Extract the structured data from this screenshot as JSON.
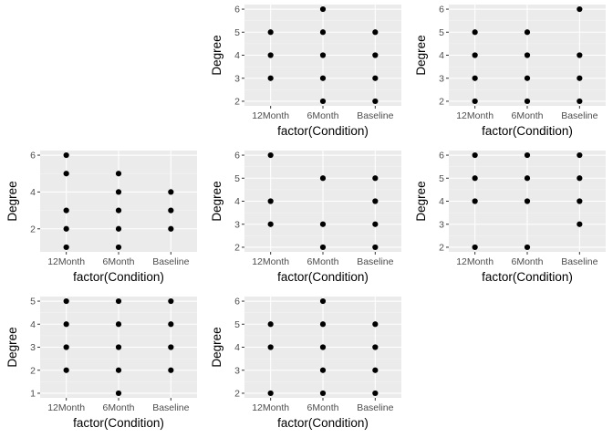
{
  "chart_data": [
    {
      "type": "scatter",
      "xlabel": "factor(Condition)",
      "ylabel": "Degree",
      "categories": [
        "12Month",
        "6Month",
        "Baseline"
      ],
      "ylim": [
        1.8,
        6.2
      ],
      "yticks": [
        2,
        3,
        4,
        5,
        6
      ],
      "grid": true,
      "legend": "none",
      "points": [
        {
          "x": "12Month",
          "y": 3
        },
        {
          "x": "12Month",
          "y": 4
        },
        {
          "x": "12Month",
          "y": 5
        },
        {
          "x": "6Month",
          "y": 2
        },
        {
          "x": "6Month",
          "y": 3
        },
        {
          "x": "6Month",
          "y": 4
        },
        {
          "x": "6Month",
          "y": 5
        },
        {
          "x": "6Month",
          "y": 6
        },
        {
          "x": "Baseline",
          "y": 2
        },
        {
          "x": "Baseline",
          "y": 3
        },
        {
          "x": "Baseline",
          "y": 4
        },
        {
          "x": "Baseline",
          "y": 5
        }
      ]
    },
    {
      "type": "scatter",
      "xlabel": "factor(Condition)",
      "ylabel": "Degree",
      "categories": [
        "12Month",
        "6Month",
        "Baseline"
      ],
      "ylim": [
        1.8,
        6.2
      ],
      "yticks": [
        2,
        3,
        4,
        5,
        6
      ],
      "grid": true,
      "legend": "none",
      "points": [
        {
          "x": "12Month",
          "y": 2
        },
        {
          "x": "12Month",
          "y": 3
        },
        {
          "x": "12Month",
          "y": 4
        },
        {
          "x": "12Month",
          "y": 5
        },
        {
          "x": "6Month",
          "y": 2
        },
        {
          "x": "6Month",
          "y": 3
        },
        {
          "x": "6Month",
          "y": 4
        },
        {
          "x": "6Month",
          "y": 5
        },
        {
          "x": "Baseline",
          "y": 2
        },
        {
          "x": "Baseline",
          "y": 3
        },
        {
          "x": "Baseline",
          "y": 4
        },
        {
          "x": "Baseline",
          "y": 6
        }
      ]
    },
    {
      "type": "scatter",
      "xlabel": "factor(Condition)",
      "ylabel": "Degree",
      "categories": [
        "12Month",
        "6Month",
        "Baseline"
      ],
      "ylim": [
        0.75,
        6.25
      ],
      "yticks": [
        2,
        4,
        6
      ],
      "grid": true,
      "legend": "none",
      "points": [
        {
          "x": "12Month",
          "y": 1
        },
        {
          "x": "12Month",
          "y": 2
        },
        {
          "x": "12Month",
          "y": 3
        },
        {
          "x": "12Month",
          "y": 5
        },
        {
          "x": "12Month",
          "y": 6
        },
        {
          "x": "6Month",
          "y": 1
        },
        {
          "x": "6Month",
          "y": 2
        },
        {
          "x": "6Month",
          "y": 3
        },
        {
          "x": "6Month",
          "y": 4
        },
        {
          "x": "6Month",
          "y": 5
        },
        {
          "x": "Baseline",
          "y": 2
        },
        {
          "x": "Baseline",
          "y": 3
        },
        {
          "x": "Baseline",
          "y": 4
        }
      ]
    },
    {
      "type": "scatter",
      "xlabel": "factor(Condition)",
      "ylabel": "Degree",
      "categories": [
        "12Month",
        "6Month",
        "Baseline"
      ],
      "ylim": [
        1.8,
        6.2
      ],
      "yticks": [
        2,
        3,
        4,
        5,
        6
      ],
      "grid": true,
      "legend": "none",
      "points": [
        {
          "x": "12Month",
          "y": 3
        },
        {
          "x": "12Month",
          "y": 4
        },
        {
          "x": "12Month",
          "y": 6
        },
        {
          "x": "6Month",
          "y": 2
        },
        {
          "x": "6Month",
          "y": 3
        },
        {
          "x": "6Month",
          "y": 5
        },
        {
          "x": "Baseline",
          "y": 2
        },
        {
          "x": "Baseline",
          "y": 3
        },
        {
          "x": "Baseline",
          "y": 4
        },
        {
          "x": "Baseline",
          "y": 5
        }
      ]
    },
    {
      "type": "scatter",
      "xlabel": "factor(Condition)",
      "ylabel": "Degree",
      "categories": [
        "12Month",
        "6Month",
        "Baseline"
      ],
      "ylim": [
        1.8,
        6.2
      ],
      "yticks": [
        2,
        3,
        4,
        5,
        6
      ],
      "grid": true,
      "legend": "none",
      "points": [
        {
          "x": "12Month",
          "y": 2
        },
        {
          "x": "12Month",
          "y": 4
        },
        {
          "x": "12Month",
          "y": 5
        },
        {
          "x": "12Month",
          "y": 6
        },
        {
          "x": "6Month",
          "y": 2
        },
        {
          "x": "6Month",
          "y": 4
        },
        {
          "x": "6Month",
          "y": 5
        },
        {
          "x": "6Month",
          "y": 6
        },
        {
          "x": "Baseline",
          "y": 3
        },
        {
          "x": "Baseline",
          "y": 4
        },
        {
          "x": "Baseline",
          "y": 5
        },
        {
          "x": "Baseline",
          "y": 6
        }
      ]
    },
    {
      "type": "scatter",
      "xlabel": "factor(Condition)",
      "ylabel": "Degree",
      "categories": [
        "12Month",
        "6Month",
        "Baseline"
      ],
      "ylim": [
        0.8,
        5.2
      ],
      "yticks": [
        1,
        2,
        3,
        4,
        5
      ],
      "grid": true,
      "legend": "none",
      "points": [
        {
          "x": "12Month",
          "y": 2
        },
        {
          "x": "12Month",
          "y": 3
        },
        {
          "x": "12Month",
          "y": 4
        },
        {
          "x": "12Month",
          "y": 5
        },
        {
          "x": "6Month",
          "y": 1
        },
        {
          "x": "6Month",
          "y": 2
        },
        {
          "x": "6Month",
          "y": 3
        },
        {
          "x": "6Month",
          "y": 4
        },
        {
          "x": "6Month",
          "y": 5
        },
        {
          "x": "Baseline",
          "y": 2
        },
        {
          "x": "Baseline",
          "y": 3
        },
        {
          "x": "Baseline",
          "y": 4
        },
        {
          "x": "Baseline",
          "y": 5
        }
      ]
    },
    {
      "type": "scatter",
      "xlabel": "factor(Condition)",
      "ylabel": "Degree",
      "categories": [
        "12Month",
        "6Month",
        "Baseline"
      ],
      "ylim": [
        1.8,
        6.2
      ],
      "yticks": [
        2,
        3,
        4,
        5,
        6
      ],
      "grid": true,
      "legend": "none",
      "points": [
        {
          "x": "12Month",
          "y": 2
        },
        {
          "x": "12Month",
          "y": 4
        },
        {
          "x": "12Month",
          "y": 5
        },
        {
          "x": "6Month",
          "y": 2
        },
        {
          "x": "6Month",
          "y": 3
        },
        {
          "x": "6Month",
          "y": 4
        },
        {
          "x": "6Month",
          "y": 5
        },
        {
          "x": "6Month",
          "y": 6
        },
        {
          "x": "Baseline",
          "y": 2
        },
        {
          "x": "Baseline",
          "y": 3
        },
        {
          "x": "Baseline",
          "y": 4
        },
        {
          "x": "Baseline",
          "y": 5
        }
      ]
    }
  ]
}
